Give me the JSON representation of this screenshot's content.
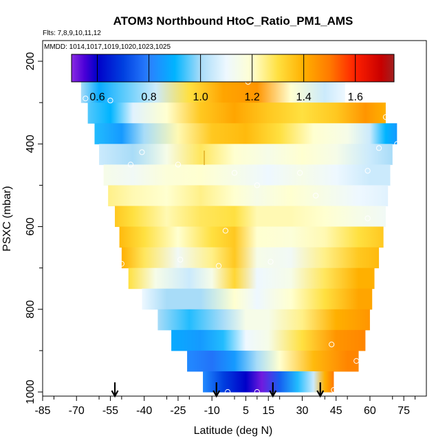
{
  "chart_data": {
    "type": "heatmap",
    "title": "ATOM3 Northbound HtoC_Ratio_PM1_AMS",
    "flights_label": "Flts: 7,8,9,10,11,12",
    "dates_label": "MMDD: 1014,1017,1019,1020,1023,1025",
    "xlabel": "Latitude (deg N)",
    "ylabel": "PSXC (mbar)",
    "xlim": [
      -85,
      85
    ],
    "ylim": [
      1010,
      150
    ],
    "x_ticks": [
      -85,
      -70,
      -55,
      -40,
      -25,
      -10,
      5,
      15,
      30,
      45,
      60,
      75
    ],
    "y_ticks": [
      200,
      400,
      600,
      800,
      1000
    ],
    "colorbar": {
      "range": [
        0.5,
        1.75
      ],
      "ticks": [
        0.6,
        0.8,
        1.0,
        1.2,
        1.4,
        1.6
      ],
      "tick_labels": [
        "0.6",
        "0.8",
        "1.0",
        "1.2",
        "1.4",
        "1.6"
      ]
    },
    "arrows_latitude": [
      -53,
      -8,
      17,
      38
    ],
    "rows": [
      {
        "p": 225,
        "lat_start": -72,
        "lat_end": 32,
        "stops": [
          [
            -72,
            1.08
          ],
          [
            -52,
            1.02
          ],
          [
            -40,
            0.95
          ],
          [
            -35,
            0.88
          ],
          [
            -25,
            1.22
          ],
          [
            -10,
            1.45
          ],
          [
            0,
            1.6
          ],
          [
            8,
            1.68
          ],
          [
            15,
            1.58
          ],
          [
            20,
            1.38
          ],
          [
            25,
            1.15
          ],
          [
            32,
            1.08
          ]
        ]
      },
      {
        "p": 275,
        "lat_start": -68,
        "lat_end": 49,
        "stops": [
          [
            -68,
            1.0
          ],
          [
            -60,
            0.88
          ],
          [
            -50,
            0.95
          ],
          [
            -35,
            1.05
          ],
          [
            -20,
            1.3
          ],
          [
            -5,
            1.42
          ],
          [
            10,
            1.45
          ],
          [
            25,
            1.2
          ],
          [
            40,
            1.05
          ],
          [
            49,
            1.1
          ]
        ]
      },
      {
        "p": 325,
        "lat_start": -65,
        "lat_end": 67,
        "stops": [
          [
            -65,
            0.95
          ],
          [
            -55,
            0.9
          ],
          [
            -45,
            1.08
          ],
          [
            -30,
            1.2
          ],
          [
            -15,
            1.35
          ],
          [
            0,
            1.42
          ],
          [
            15,
            1.35
          ],
          [
            30,
            1.3
          ],
          [
            45,
            1.35
          ],
          [
            58,
            1.45
          ],
          [
            67,
            1.4
          ]
        ]
      },
      {
        "p": 375,
        "lat_start": -62,
        "lat_end": 72,
        "stops": [
          [
            -62,
            0.92
          ],
          [
            -50,
            0.85
          ],
          [
            -40,
            1.0
          ],
          [
            -25,
            1.22
          ],
          [
            -10,
            1.35
          ],
          [
            5,
            1.38
          ],
          [
            20,
            1.3
          ],
          [
            35,
            1.2
          ],
          [
            50,
            1.15
          ],
          [
            60,
            1.05
          ],
          [
            67,
            0.9
          ],
          [
            72,
            0.85
          ]
        ]
      },
      {
        "p": 425,
        "lat_start": -60,
        "lat_end": 70,
        "stops": [
          [
            -60,
            1.05
          ],
          [
            -45,
            1.0
          ],
          [
            -30,
            1.15
          ],
          [
            -15,
            1.28
          ],
          [
            0,
            1.2
          ],
          [
            15,
            1.15
          ],
          [
            30,
            1.2
          ],
          [
            45,
            1.15
          ],
          [
            60,
            1.05
          ],
          [
            70,
            1.0
          ]
        ]
      },
      {
        "p": 475,
        "lat_start": -58,
        "lat_end": 69,
        "stops": [
          [
            -58,
            1.15
          ],
          [
            -45,
            1.12
          ],
          [
            -30,
            1.18
          ],
          [
            -15,
            1.2
          ],
          [
            0,
            1.15
          ],
          [
            15,
            1.1
          ],
          [
            30,
            1.15
          ],
          [
            45,
            1.1
          ],
          [
            60,
            1.05
          ],
          [
            69,
            1.05
          ]
        ]
      },
      {
        "p": 525,
        "lat_start": -56,
        "lat_end": 68,
        "stops": [
          [
            -56,
            1.25
          ],
          [
            -45,
            1.22
          ],
          [
            -30,
            1.2
          ],
          [
            -15,
            1.25
          ],
          [
            0,
            1.2
          ],
          [
            10,
            1.15
          ],
          [
            25,
            1.2
          ],
          [
            40,
            1.15
          ],
          [
            55,
            1.1
          ],
          [
            68,
            1.08
          ]
        ]
      },
      {
        "p": 575,
        "lat_start": -53,
        "lat_end": 67,
        "stops": [
          [
            -53,
            1.35
          ],
          [
            -45,
            1.3
          ],
          [
            -30,
            1.22
          ],
          [
            -15,
            1.28
          ],
          [
            0,
            1.3
          ],
          [
            10,
            1.22
          ],
          [
            25,
            1.22
          ],
          [
            40,
            1.2
          ],
          [
            55,
            1.15
          ],
          [
            67,
            1.12
          ]
        ]
      },
      {
        "p": 625,
        "lat_start": -51,
        "lat_end": 66,
        "stops": [
          [
            -51,
            1.38
          ],
          [
            -40,
            1.3
          ],
          [
            -25,
            1.2
          ],
          [
            -10,
            1.3
          ],
          [
            0,
            1.35
          ],
          [
            10,
            1.2
          ],
          [
            25,
            1.18
          ],
          [
            40,
            1.22
          ],
          [
            55,
            1.3
          ],
          [
            66,
            1.35
          ]
        ]
      },
      {
        "p": 675,
        "lat_start": -50,
        "lat_end": 64,
        "stops": [
          [
            -50,
            1.4
          ],
          [
            -40,
            1.28
          ],
          [
            -25,
            1.12
          ],
          [
            -10,
            1.25
          ],
          [
            0,
            1.35
          ],
          [
            10,
            1.15
          ],
          [
            25,
            1.12
          ],
          [
            40,
            1.25
          ],
          [
            55,
            1.35
          ],
          [
            64,
            1.38
          ]
        ]
      },
      {
        "p": 725,
        "lat_start": -47,
        "lat_end": 62,
        "stops": [
          [
            -47,
            1.3
          ],
          [
            -35,
            1.15
          ],
          [
            -20,
            1.05
          ],
          [
            -10,
            1.15
          ],
          [
            0,
            1.32
          ],
          [
            10,
            1.1
          ],
          [
            25,
            1.15
          ],
          [
            40,
            1.28
          ],
          [
            55,
            1.4
          ],
          [
            62,
            1.4
          ]
        ]
      },
      {
        "p": 775,
        "lat_start": -41,
        "lat_end": 61,
        "stops": [
          [
            -41,
            1.1
          ],
          [
            -30,
            1.0
          ],
          [
            -15,
            1.0
          ],
          [
            0,
            1.2
          ],
          [
            10,
            1.1
          ],
          [
            25,
            1.2
          ],
          [
            40,
            1.3
          ],
          [
            55,
            1.42
          ],
          [
            61,
            1.42
          ]
        ]
      },
      {
        "p": 825,
        "lat_start": -34,
        "lat_end": 60,
        "stops": [
          [
            -34,
            1.0
          ],
          [
            -20,
            0.92
          ],
          [
            -5,
            1.0
          ],
          [
            5,
            1.15
          ],
          [
            15,
            1.15
          ],
          [
            30,
            1.25
          ],
          [
            45,
            1.4
          ],
          [
            60,
            1.45
          ]
        ]
      },
      {
        "p": 875,
        "lat_start": -28,
        "lat_end": 58,
        "stops": [
          [
            -28,
            0.88
          ],
          [
            -15,
            0.85
          ],
          [
            -5,
            0.92
          ],
          [
            5,
            1.1
          ],
          [
            15,
            1.15
          ],
          [
            30,
            1.3
          ],
          [
            45,
            1.45
          ],
          [
            58,
            1.48
          ]
        ]
      },
      {
        "p": 925,
        "lat_start": -21,
        "lat_end": 55,
        "stops": [
          [
            -21,
            0.82
          ],
          [
            -10,
            0.78
          ],
          [
            0,
            0.85
          ],
          [
            10,
            1.0
          ],
          [
            20,
            1.2
          ],
          [
            35,
            1.38
          ],
          [
            50,
            1.48
          ],
          [
            55,
            1.48
          ]
        ]
      },
      {
        "p": 975,
        "lat_start": -14,
        "lat_end": 44,
        "stops": [
          [
            -14,
            0.82
          ],
          [
            -5,
            0.7
          ],
          [
            5,
            0.6
          ],
          [
            12,
            0.52
          ],
          [
            20,
            0.75
          ],
          [
            28,
            0.92
          ],
          [
            35,
            1.05
          ],
          [
            40,
            1.4
          ],
          [
            44,
            1.5
          ]
        ]
      }
    ],
    "markers": [
      {
        "lat": -72,
        "p": 245
      },
      {
        "lat": -40,
        "p": 235
      },
      {
        "lat": 27,
        "p": 223
      },
      {
        "lat": -66,
        "p": 290
      },
      {
        "lat": -55,
        "p": 295
      },
      {
        "lat": 6,
        "p": 250
      },
      {
        "lat": 67,
        "p": 335
      },
      {
        "lat": 64,
        "p": 410
      },
      {
        "lat": 72,
        "p": 400
      },
      {
        "lat": -41,
        "p": 420
      },
      {
        "lat": -46,
        "p": 450
      },
      {
        "lat": -25,
        "p": 450
      },
      {
        "lat": 0,
        "p": 470
      },
      {
        "lat": 10,
        "p": 500
      },
      {
        "lat": 29,
        "p": 470
      },
      {
        "lat": 59,
        "p": 465
      },
      {
        "lat": 36,
        "p": 525
      },
      {
        "lat": 59,
        "p": 580
      },
      {
        "lat": -4,
        "p": 610
      },
      {
        "lat": -53,
        "p": 640
      },
      {
        "lat": -50,
        "p": 690
      },
      {
        "lat": -24,
        "p": 680
      },
      {
        "lat": -7,
        "p": 695
      },
      {
        "lat": 16,
        "p": 685
      },
      {
        "lat": 43,
        "p": 885
      },
      {
        "lat": 54,
        "p": 925
      },
      {
        "lat": -3,
        "p": 1000
      },
      {
        "lat": 10,
        "p": 1000
      },
      {
        "lat": 35,
        "p": 1010
      },
      {
        "lat": 44,
        "p": 995
      }
    ]
  }
}
